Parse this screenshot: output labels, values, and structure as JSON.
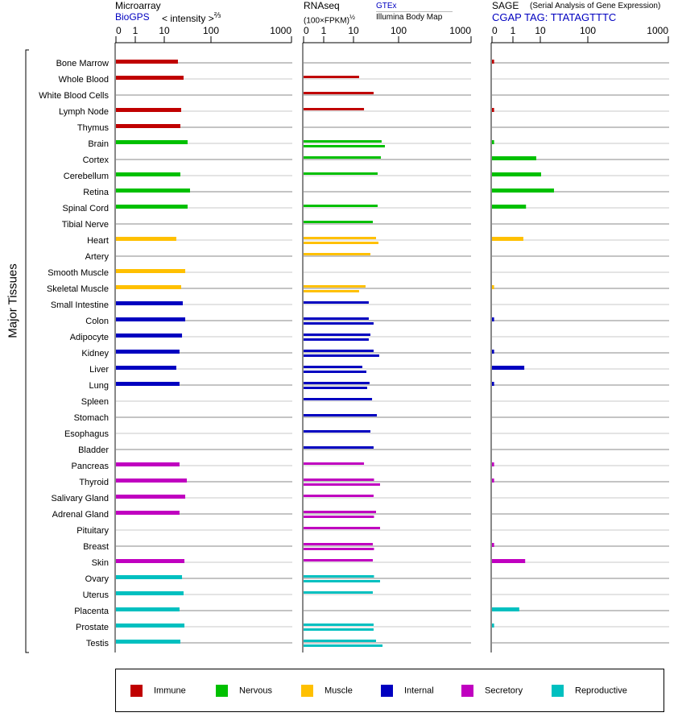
{
  "headers": {
    "microarray": {
      "title": "Microarray",
      "source": "BioGPS",
      "unit": "< intensity >",
      "unit_exp": "⅔"
    },
    "rnaseq": {
      "title": "RNAseq",
      "unit": "(100×FPKM)",
      "unit_exp": "½",
      "source_top": "GTEx",
      "source_bottom": "Illumina Body Map"
    },
    "sage": {
      "title": "SAGE",
      "subtitle": "(Serial Analysis of Gene Expression)",
      "tag": "CGAP TAG: TTATAGTTTC"
    }
  },
  "axis_label": "Major Tissues",
  "legend": [
    {
      "label": "Immune",
      "color": "#c00000"
    },
    {
      "label": "Nervous",
      "color": "#00c000"
    },
    {
      "label": "Muscle",
      "color": "#ffc000"
    },
    {
      "label": "Internal",
      "color": "#0000c0"
    },
    {
      "label": "Secretory",
      "color": "#c000c0"
    },
    {
      "label": "Reproductive",
      "color": "#00c0c0"
    }
  ],
  "chart_data": {
    "type": "bar",
    "orientation": "horizontal",
    "tick_labels": [
      "0",
      "1",
      "10",
      "100",
      "1000"
    ],
    "tick_values": [
      0,
      1,
      10,
      100,
      1000
    ],
    "categories": [
      "Bone Marrow",
      "Whole Blood",
      "White Blood Cells",
      "Lymph Node",
      "Thymus",
      "Brain",
      "Cortex",
      "Cerebellum",
      "Retina",
      "Spinal Cord",
      "Tibial Nerve",
      "Heart",
      "Artery",
      "Smooth Muscle",
      "Skeletal Muscle",
      "Small Intestine",
      "Colon",
      "Adipocyte",
      "Kidney",
      "Liver",
      "Lung",
      "Spleen",
      "Stomach",
      "Esophagus",
      "Bladder",
      "Pancreas",
      "Thyroid",
      "Salivary Gland",
      "Adrenal Gland",
      "Pituitary",
      "Breast",
      "Skin",
      "Ovary",
      "Uterus",
      "Placenta",
      "Prostate",
      "Testis"
    ],
    "category_group": [
      0,
      0,
      0,
      0,
      0,
      1,
      1,
      1,
      1,
      1,
      1,
      2,
      2,
      2,
      2,
      3,
      3,
      3,
      3,
      3,
      3,
      3,
      3,
      3,
      3,
      4,
      4,
      4,
      4,
      4,
      4,
      4,
      5,
      5,
      5,
      5,
      5
    ],
    "panels": [
      {
        "name": "Microarray",
        "series": [
          {
            "name": "BioGPS",
            "values": [
              19.6,
              25.9,
              null,
              23.0,
              22.1,
              31.6,
              null,
              22.1,
              35.6,
              31.6,
              null,
              18.1,
              null,
              28.1,
              23.0,
              24.9,
              28.1,
              24.0,
              21.2,
              18.1,
              21.2,
              null,
              null,
              null,
              null,
              21.2,
              30.4,
              28.1,
              21.2,
              null,
              null,
              27.0,
              24.0,
              25.9,
              21.2,
              27.0,
              22.1
            ]
          }
        ]
      },
      {
        "name": "RNAseq",
        "series": [
          {
            "name": "GTEx",
            "values": [
              null,
              13.3,
              27.9,
              17.1,
              null,
              42.0,
              40.5,
              34.3,
              null,
              34.3,
              26.8,
              31.6,
              23.7,
              null,
              18.5,
              21.8,
              21.8,
              23.7,
              27.9,
              15.7,
              22.7,
              25.8,
              33.0,
              23.7,
              27.9,
              17.1,
              28.5,
              27.9,
              31.6,
              38.8,
              26.8,
              26.8,
              28.5,
              26.8,
              null,
              27.9,
              31.6
            ]
          },
          {
            "name": "Illumina Body Map",
            "values": [
              null,
              null,
              null,
              null,
              null,
              49.7,
              null,
              null,
              null,
              null,
              null,
              35.8,
              null,
              null,
              13.3,
              null,
              27.9,
              21.8,
              37.2,
              19.3,
              20.1,
              null,
              null,
              null,
              null,
              null,
              38.8,
              null,
              28.5,
              null,
              28.5,
              null,
              38.8,
              null,
              null,
              27.9,
              44.0
            ]
          }
        ]
      },
      {
        "name": "SAGE",
        "series": [
          {
            "name": "CGAP",
            "values": [
              0.1,
              null,
              null,
              0.1,
              null,
              0.1,
              7.1,
              10.4,
              19.4,
              3.0,
              null,
              2.4,
              null,
              null,
              0.1,
              null,
              0.1,
              null,
              0.1,
              2.6,
              0.1,
              null,
              null,
              null,
              null,
              0.1,
              0.1,
              null,
              null,
              null,
              0.1,
              2.8,
              null,
              null,
              1.7,
              0.1,
              null
            ]
          }
        ]
      }
    ]
  }
}
